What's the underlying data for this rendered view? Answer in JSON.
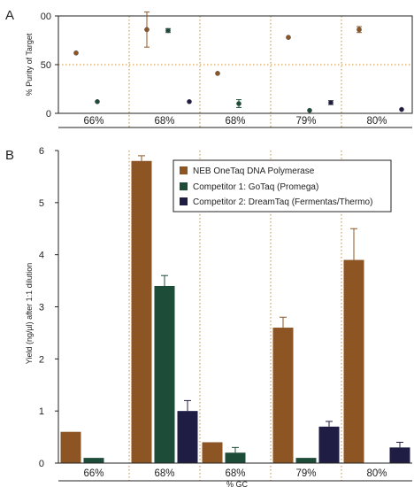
{
  "colors": {
    "series": [
      "#8c5523",
      "#1d4c38",
      "#1f1d44"
    ],
    "axis": "#222222",
    "divider": "#c9902f",
    "error_bar": "#333333"
  },
  "panel_labels": [
    "A",
    "B"
  ],
  "chart_data": [
    {
      "type": "scatter",
      "panel": "A",
      "title": "",
      "xlabel": "",
      "ylabel": "% Purity of Target",
      "ylim": [
        0,
        100
      ],
      "yticks": [
        "00",
        "50",
        "0"
      ],
      "categories": [
        "66%",
        "68%",
        "68%",
        "79%",
        "80%"
      ],
      "grid": "dotted vertical dividers between groups and dotted horizontal line at 50",
      "series": [
        {
          "values": [
            62,
            86,
            41,
            78,
            86
          ],
          "errors": [
            0,
            18,
            0,
            0,
            3
          ]
        },
        {
          "values": [
            12,
            85,
            10,
            3,
            null
          ],
          "errors": [
            0,
            2,
            4,
            0,
            0
          ]
        },
        {
          "values": [
            null,
            12,
            null,
            11,
            4
          ],
          "errors": [
            0,
            0,
            0,
            2,
            0
          ]
        }
      ]
    },
    {
      "type": "bar",
      "panel": "B",
      "title": "",
      "xlabel": "% GC",
      "ylabel": "Yield (ng/µl) after 1:1 dilution",
      "ylim": [
        0,
        6
      ],
      "yticks": [
        "0",
        "1",
        "2",
        "3",
        "4",
        "5",
        "6"
      ],
      "categories": [
        "66%",
        "68%",
        "68%",
        "79%",
        "80%"
      ],
      "legend_position": "top-right",
      "grid": "dotted vertical dividers between groups",
      "series": [
        {
          "name": "NEB OneTaq DNA Polymerase",
          "values": [
            0.6,
            5.8,
            0.4,
            2.6,
            3.9
          ],
          "errors": [
            0,
            0.1,
            0,
            0.2,
            0.6
          ]
        },
        {
          "name": "Competitor 1: GoTaq (Promega)",
          "values": [
            0.1,
            3.4,
            0.2,
            0.1,
            0
          ],
          "errors": [
            0,
            0.2,
            0.1,
            0,
            0
          ]
        },
        {
          "name": "Competitor 2: DreamTaq (Fermentas/Thermo)",
          "values": [
            0,
            1.0,
            0,
            0.7,
            0.3
          ],
          "errors": [
            0,
            0.2,
            0,
            0.1,
            0.1
          ]
        }
      ]
    }
  ]
}
